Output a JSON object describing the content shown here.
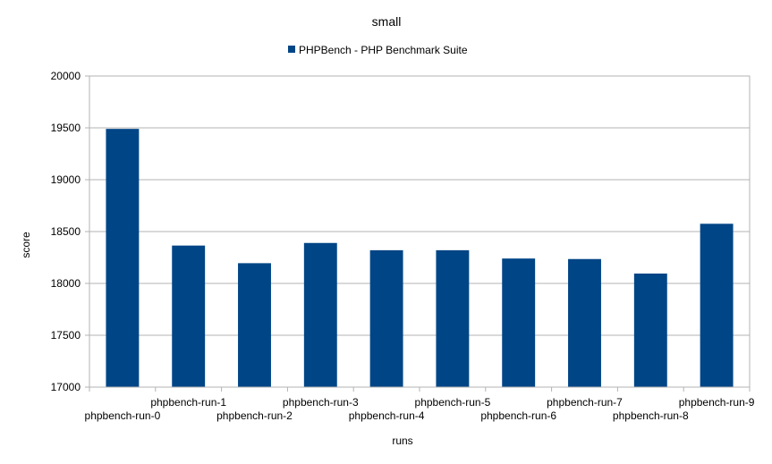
{
  "chart_data": {
    "type": "bar",
    "title": "small",
    "xlabel": "runs",
    "ylabel": "score",
    "ylim": [
      17000,
      20000
    ],
    "yticks": [
      17000,
      17500,
      18000,
      18500,
      19000,
      19500,
      20000
    ],
    "grid": true,
    "legend_position": "top-center",
    "categories": [
      "phpbench-run-0",
      "phpbench-run-1",
      "phpbench-run-2",
      "phpbench-run-3",
      "phpbench-run-4",
      "phpbench-run-5",
      "phpbench-run-6",
      "phpbench-run-7",
      "phpbench-run-8",
      "phpbench-run-9"
    ],
    "series": [
      {
        "name": "PHPBench - PHP Benchmark Suite",
        "color": "#004586",
        "values": [
          19490,
          18365,
          18195,
          18390,
          18320,
          18320,
          18240,
          18235,
          18095,
          18575
        ]
      }
    ]
  }
}
